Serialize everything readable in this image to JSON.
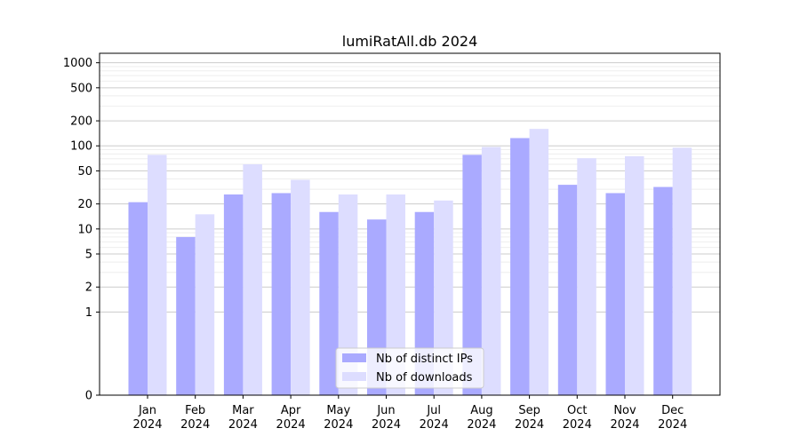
{
  "chart_data": {
    "type": "bar",
    "title": "lumiRatAll.db 2024",
    "xlabel": "",
    "ylabel": "",
    "yscale": "symlog",
    "ylim": [
      0,
      1300
    ],
    "y_ticks": [
      0,
      1,
      2,
      5,
      10,
      20,
      50,
      100,
      200,
      500,
      1000
    ],
    "y_tick_labels": [
      "0",
      "1",
      "2",
      "5",
      "10",
      "20",
      "50",
      "100",
      "200",
      "500",
      "1000"
    ],
    "categories": [
      [
        "Jan",
        "2024"
      ],
      [
        "Feb",
        "2024"
      ],
      [
        "Mar",
        "2024"
      ],
      [
        "Apr",
        "2024"
      ],
      [
        "May",
        "2024"
      ],
      [
        "Jun",
        "2024"
      ],
      [
        "Jul",
        "2024"
      ],
      [
        "Aug",
        "2024"
      ],
      [
        "Sep",
        "2024"
      ],
      [
        "Oct",
        "2024"
      ],
      [
        "Nov",
        "2024"
      ],
      [
        "Dec",
        "2024"
      ]
    ],
    "series": [
      {
        "name": "Nb of distinct IPs",
        "color": "#aaaaff",
        "values": [
          21,
          8,
          26,
          27,
          16,
          13,
          16,
          78,
          124,
          34,
          27,
          32
        ]
      },
      {
        "name": "Nb of downloads",
        "color": "#ddddff",
        "values": [
          78,
          15,
          60,
          39,
          26,
          26,
          22,
          97,
          160,
          71,
          75,
          95
        ]
      }
    ],
    "grid": true,
    "grid_color": "#cccccc",
    "minor_grid_color": "#eeeeee",
    "legend_position": "lower-center",
    "axis_color": "#000000"
  }
}
